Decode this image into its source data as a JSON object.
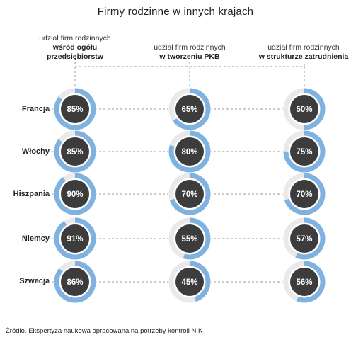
{
  "title": "Firmy rodzinne w innych krajach",
  "columns": [
    {
      "line1": "udział firm rodzinnych",
      "line2": "wśród ogółu",
      "line3": "przedsiębiorstw"
    },
    {
      "line1": "udział firm rodzinnych",
      "line2": "w tworzeniu PKB",
      "line3": ""
    },
    {
      "line1": "udział firm rodzinnych",
      "line2": "w strukturze zatrudnienia",
      "line3": ""
    }
  ],
  "rows": [
    "Francja",
    "Włochy",
    "Hiszpania",
    "Niemcy",
    "Szwecja"
  ],
  "source": "Źródło. Ekspertyza naukowa opracowana na potrzeby kontroli NIK",
  "colors": {
    "ring_fill": "#7fb2e0",
    "ring_track": "#e9e9e9",
    "center": "#3c3c3c",
    "dash": "#999999"
  },
  "chart_data": {
    "type": "donut-grid",
    "title": "Firmy rodzinne w innych krajach",
    "categories": [
      "Francja",
      "Włochy",
      "Hiszpania",
      "Niemcy",
      "Szwecja"
    ],
    "unit": "%",
    "series": [
      {
        "name": "udział firm rodzinnych wśród ogółu przedsiębiorstw",
        "values": [
          85,
          85,
          90,
          91,
          86
        ]
      },
      {
        "name": "udział firm rodzinnych w tworzeniu PKB",
        "values": [
          65,
          80,
          70,
          55,
          45
        ]
      },
      {
        "name": "udział firm rodzinnych w strukturze zatrudnienia",
        "values": [
          50,
          75,
          70,
          57,
          56
        ]
      }
    ]
  }
}
